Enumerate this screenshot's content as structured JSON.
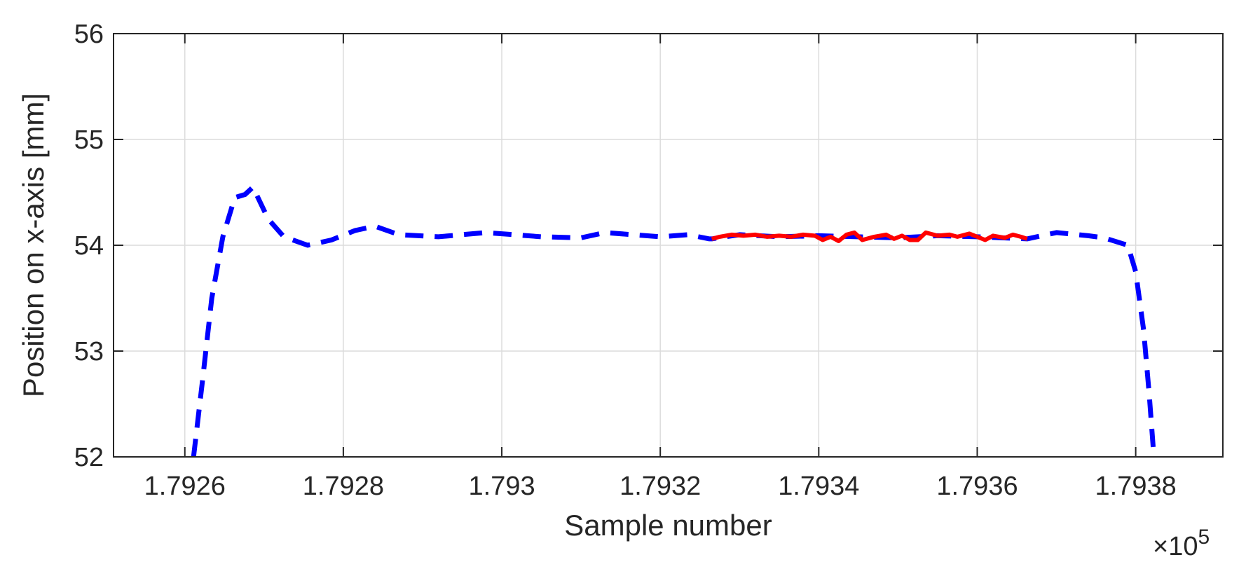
{
  "chart_data": {
    "type": "line",
    "title": "",
    "xlabel": "Sample number",
    "ylabel": "Position on x-axis [mm]",
    "x_scale_label": "×10",
    "x_scale_exponent": "5",
    "xlim": [
      1.79251,
      1.79391
    ],
    "ylim": [
      52,
      56
    ],
    "x_ticks": [
      1.7926,
      1.7928,
      1.793,
      1.7932,
      1.7934,
      1.7936,
      1.7938
    ],
    "x_tick_labels": [
      "1.7926",
      "1.7928",
      "1.793",
      "1.7932",
      "1.7934",
      "1.7936",
      "1.7938"
    ],
    "y_ticks": [
      52,
      53,
      54,
      55,
      56
    ],
    "y_tick_labels": [
      "52",
      "53",
      "54",
      "55",
      "56"
    ],
    "grid": true,
    "series": [
      {
        "style": "dashed",
        "color": "#0000ff",
        "points": [
          [
            1.792611,
            52.0
          ],
          [
            1.792622,
            52.7
          ],
          [
            1.792634,
            53.5
          ],
          [
            1.792648,
            54.08
          ],
          [
            1.792663,
            54.45
          ],
          [
            1.792676,
            54.48
          ],
          [
            1.792686,
            54.55
          ],
          [
            1.792705,
            54.25
          ],
          [
            1.792725,
            54.08
          ],
          [
            1.792755,
            54.0
          ],
          [
            1.792785,
            54.05
          ],
          [
            1.792815,
            54.14
          ],
          [
            1.79284,
            54.18
          ],
          [
            1.79287,
            54.1
          ],
          [
            1.79292,
            54.08
          ],
          [
            1.79298,
            54.12
          ],
          [
            1.79305,
            54.08
          ],
          [
            1.7931,
            54.07
          ],
          [
            1.79313,
            54.12
          ],
          [
            1.793165,
            54.1
          ],
          [
            1.7932,
            54.08
          ],
          [
            1.793235,
            54.1
          ],
          [
            1.793262,
            54.06
          ],
          [
            1.793265,
            54.06
          ],
          [
            1.7933,
            54.1
          ],
          [
            1.79335,
            54.08
          ],
          [
            1.7934,
            54.09
          ],
          [
            1.79345,
            54.08
          ],
          [
            1.7935,
            54.07
          ],
          [
            1.79355,
            54.09
          ],
          [
            1.7936,
            54.08
          ],
          [
            1.793663,
            54.06
          ],
          [
            1.793663,
            54.06
          ],
          [
            1.7937,
            54.12
          ],
          [
            1.79374,
            54.09
          ],
          [
            1.79376,
            54.07
          ],
          [
            1.79379,
            54.0
          ],
          [
            1.7938,
            53.75
          ],
          [
            1.79381,
            53.2
          ],
          [
            1.793817,
            52.6
          ],
          [
            1.793823,
            52.0
          ]
        ]
      },
      {
        "style": "solid",
        "color": "#ff0000",
        "points": [
          [
            1.793265,
            54.06
          ],
          [
            1.793275,
            54.08
          ],
          [
            1.79329,
            54.1
          ],
          [
            1.793305,
            54.09
          ],
          [
            1.79332,
            54.1
          ],
          [
            1.793335,
            54.08
          ],
          [
            1.79335,
            54.09
          ],
          [
            1.793365,
            54.08
          ],
          [
            1.79338,
            54.1
          ],
          [
            1.793395,
            54.09
          ],
          [
            1.793405,
            54.05
          ],
          [
            1.793415,
            54.08
          ],
          [
            1.793425,
            54.04
          ],
          [
            1.793435,
            54.1
          ],
          [
            1.793445,
            54.12
          ],
          [
            1.793455,
            54.05
          ],
          [
            1.79347,
            54.08
          ],
          [
            1.793485,
            54.1
          ],
          [
            1.793495,
            54.06
          ],
          [
            1.793505,
            54.09
          ],
          [
            1.793515,
            54.05
          ],
          [
            1.793525,
            54.05
          ],
          [
            1.793535,
            54.12
          ],
          [
            1.79355,
            54.09
          ],
          [
            1.793565,
            54.1
          ],
          [
            1.793575,
            54.08
          ],
          [
            1.79359,
            54.11
          ],
          [
            1.7936,
            54.08
          ],
          [
            1.79361,
            54.05
          ],
          [
            1.79362,
            54.09
          ],
          [
            1.793635,
            54.07
          ],
          [
            1.793645,
            54.1
          ],
          [
            1.793655,
            54.08
          ],
          [
            1.793663,
            54.06
          ]
        ]
      }
    ]
  }
}
